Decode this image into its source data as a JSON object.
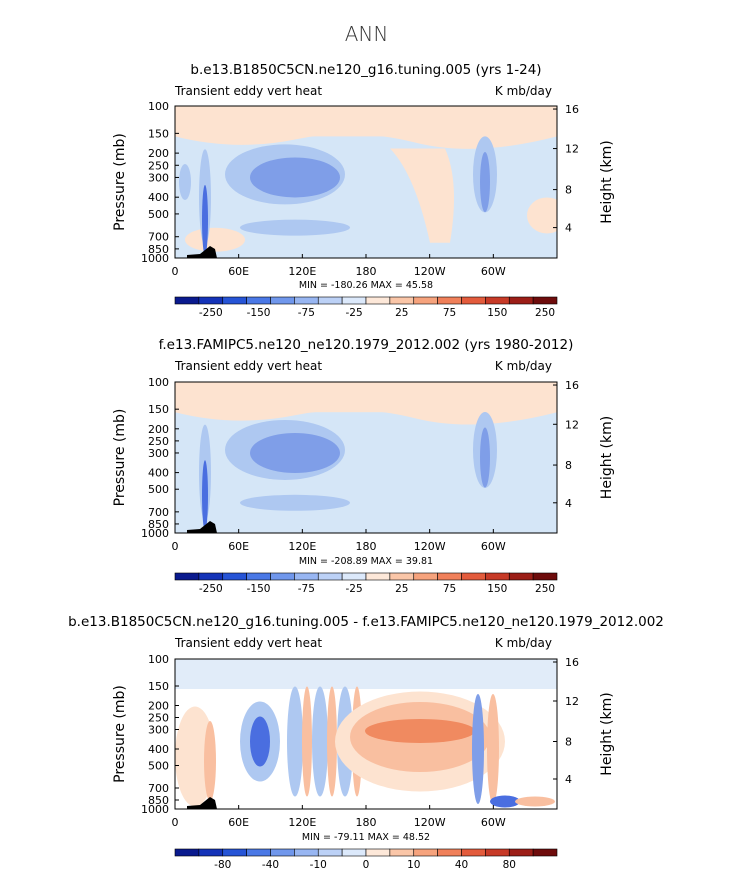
{
  "title": "ANN",
  "colors": {
    "light_blue": "#d5e6f7",
    "light_orange": "#fde3d0",
    "mid_blue": "#aec8f1",
    "deep_blue": "#7f9ee8",
    "strong_blue": "#4a6ee0",
    "salmon": "#f9bfa0",
    "orange": "#f08a60",
    "red_orange": "#e96a45",
    "land": "#000000"
  },
  "shared_labels": {
    "x_ticks": [
      "0",
      "60E",
      "120E",
      "180",
      "120W",
      "60W"
    ],
    "y_ticks_left": [
      "100",
      "150",
      "200",
      "250",
      "300",
      "400",
      "500",
      "700",
      "850",
      "1000"
    ],
    "y_ticks_right": [
      "16",
      "12",
      "8",
      "4"
    ],
    "ylabel_left": "Pressure (mb)",
    "ylabel_right": "Height (km)"
  },
  "chart_data": [
    {
      "type": "heatmap",
      "title": "b.e13.B1850C5CN.ne120_g16.tuning.005 (yrs 1-24)",
      "left_label": "Transient eddy vert heat",
      "units_label": "K mb/day",
      "stats": "MIN = -180.26   MAX =  45.58",
      "colorbar_ticks": [
        "-250",
        "-150",
        "-75",
        "-25",
        "25",
        "75",
        "150",
        "250"
      ]
    },
    {
      "type": "heatmap",
      "title": "f.e13.FAMIPC5.ne120_ne120.1979_2012.002 (yrs 1980-2012)",
      "left_label": "Transient eddy vert heat",
      "units_label": "K mb/day",
      "stats": "MIN = -208.89   MAX =  39.81",
      "colorbar_ticks": [
        "-250",
        "-150",
        "-75",
        "-25",
        "25",
        "75",
        "150",
        "250"
      ]
    },
    {
      "type": "heatmap",
      "title": "b.e13.B1850C5CN.ne120_g16.tuning.005 - f.e13.FAMIPC5.ne120_ne120.1979_2012.002",
      "left_label": "Transient eddy vert heat",
      "units_label": "K mb/day",
      "stats": "MIN = -79.11   MAX =  48.52",
      "colorbar_ticks": [
        "-80",
        "-40",
        "-10",
        "0",
        "10",
        "40",
        "80"
      ]
    }
  ]
}
